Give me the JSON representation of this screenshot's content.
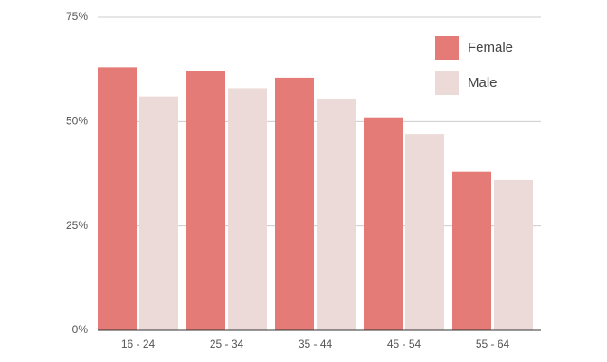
{
  "chart_data": {
    "type": "bar",
    "categories": [
      "16 - 24",
      "25 - 34",
      "35 - 44",
      "45 - 54",
      "55 - 64"
    ],
    "series": [
      {
        "name": "Female",
        "color": "#e57b76",
        "values": [
          63,
          62,
          60.5,
          51,
          38
        ]
      },
      {
        "name": "Male",
        "color": "#ecdad8",
        "values": [
          56,
          58,
          55.5,
          47,
          36
        ]
      }
    ],
    "ylim": [
      0,
      75
    ],
    "yticks": [
      {
        "value": 0,
        "label": "0%"
      },
      {
        "value": 25,
        "label": "25%"
      },
      {
        "value": 50,
        "label": "50%"
      },
      {
        "value": 75,
        "label": "75%"
      }
    ],
    "grid": true,
    "legend": "top-right"
  }
}
